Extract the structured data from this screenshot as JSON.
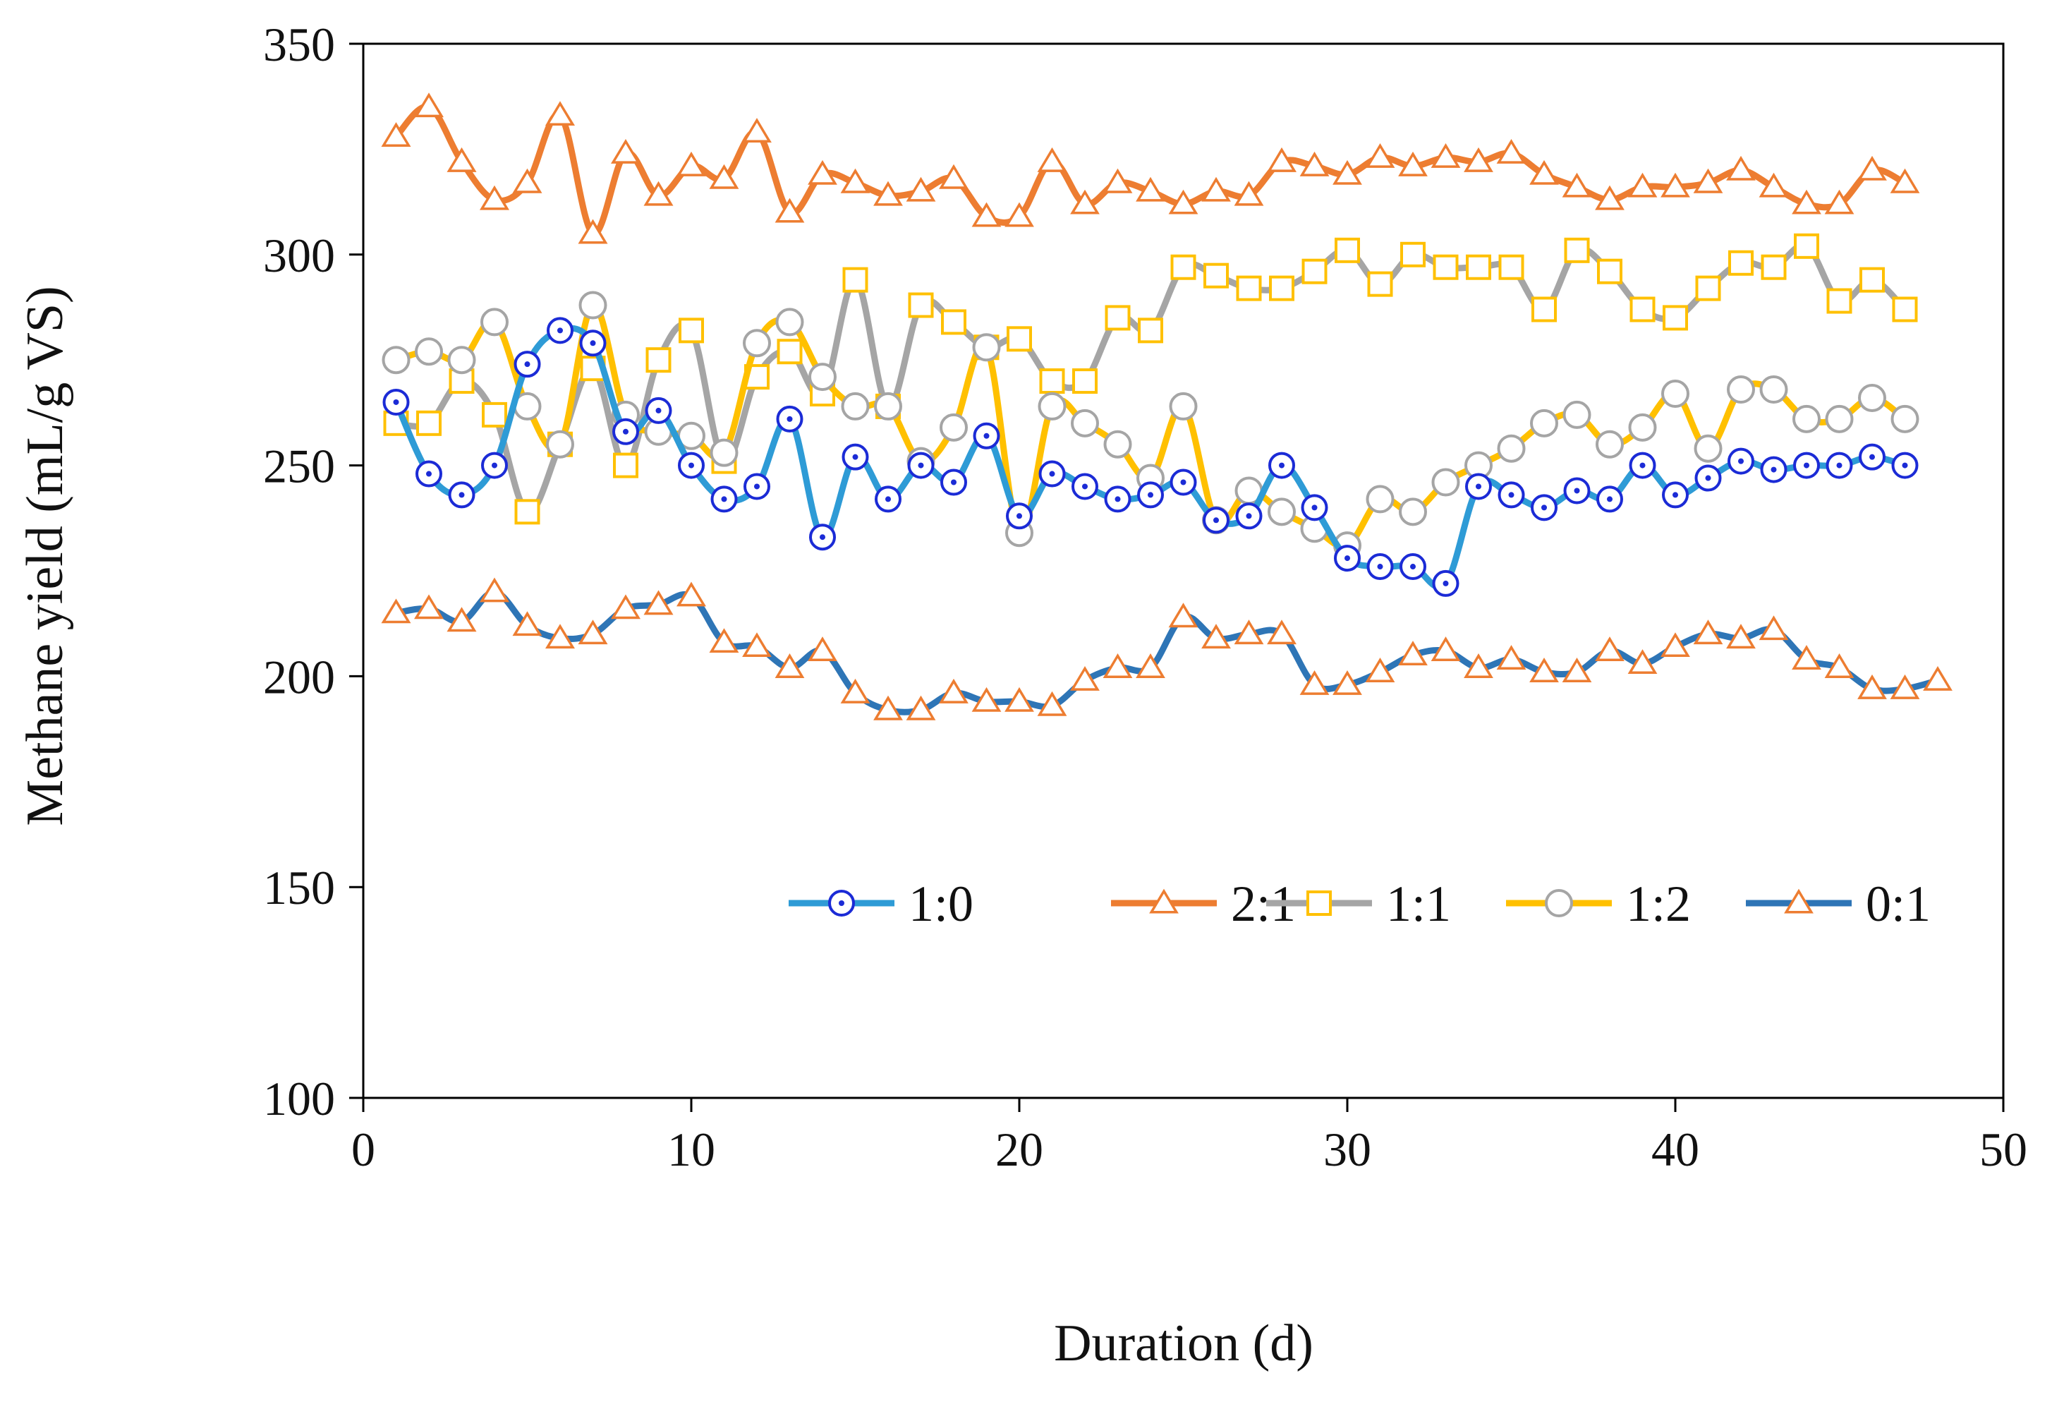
{
  "chart_data": {
    "type": "line",
    "title": "",
    "xlabel": "Duration (d)",
    "ylabel": "Methane yield (mL/g VS)",
    "xlim": [
      0,
      50
    ],
    "ylim": [
      100,
      350
    ],
    "xticks": [
      0,
      10,
      20,
      30,
      40,
      50
    ],
    "yticks": [
      100,
      150,
      200,
      250,
      300,
      350
    ],
    "grid": false,
    "legend_position": "bottom-right, single row",
    "series": [
      {
        "name": "1:0",
        "line_color": "#2E9BD6",
        "marker": "circle-dot",
        "marker_color": "#1B2BD6",
        "x": [
          1,
          2,
          3,
          4,
          5,
          6,
          7,
          8,
          9,
          10,
          11,
          12,
          13,
          14,
          15,
          16,
          17,
          18,
          19,
          20,
          21,
          22,
          23,
          24,
          25,
          26,
          27,
          28,
          29,
          30,
          31,
          32,
          33,
          34,
          35,
          36,
          37,
          38,
          39,
          40,
          41,
          42,
          43,
          44,
          45,
          46,
          47
        ],
        "values": [
          265,
          248,
          243,
          250,
          274,
          282,
          279,
          258,
          263,
          250,
          242,
          245,
          261,
          233,
          252,
          242,
          250,
          246,
          257,
          238,
          248,
          245,
          242,
          243,
          246,
          237,
          238,
          250,
          240,
          228,
          226,
          226,
          222,
          245,
          243,
          240,
          244,
          242,
          250,
          243,
          247,
          251,
          249,
          250,
          250,
          252,
          250
        ]
      },
      {
        "name": "2:1",
        "line_color": "#ED7D31",
        "marker": "triangle",
        "marker_color": "#ED7D31",
        "x": [
          1,
          2,
          3,
          4,
          5,
          6,
          7,
          8,
          9,
          10,
          11,
          12,
          13,
          14,
          15,
          16,
          17,
          18,
          19,
          20,
          21,
          22,
          23,
          24,
          25,
          26,
          27,
          28,
          29,
          30,
          31,
          32,
          33,
          34,
          35,
          36,
          37,
          38,
          39,
          40,
          41,
          42,
          43,
          44,
          45,
          46,
          47
        ],
        "values": [
          328,
          335,
          322,
          313,
          317,
          333,
          305,
          324,
          314,
          321,
          318,
          329,
          310,
          319,
          317,
          314,
          315,
          318,
          309,
          309,
          322,
          312,
          317,
          315,
          312,
          315,
          314,
          322,
          321,
          319,
          323,
          321,
          323,
          322,
          324,
          319,
          316,
          313,
          316,
          316,
          317,
          320,
          316,
          312,
          312,
          320,
          317
        ]
      },
      {
        "name": "1:1",
        "line_color": "#A5A5A5",
        "marker": "square",
        "marker_color": "#FFC000",
        "x": [
          1,
          2,
          3,
          4,
          5,
          6,
          7,
          8,
          9,
          10,
          11,
          12,
          13,
          14,
          15,
          16,
          17,
          18,
          19,
          20,
          21,
          22,
          23,
          24,
          25,
          26,
          27,
          28,
          29,
          30,
          31,
          32,
          33,
          34,
          35,
          36,
          37,
          38,
          39,
          40,
          41,
          42,
          43,
          44,
          45,
          46,
          47
        ],
        "values": [
          260,
          260,
          270,
          262,
          239,
          255,
          273,
          250,
          275,
          282,
          251,
          271,
          277,
          267,
          294,
          264,
          288,
          284,
          278,
          280,
          270,
          270,
          285,
          282,
          297,
          295,
          292,
          292,
          296,
          301,
          293,
          300,
          297,
          297,
          297,
          287,
          301,
          296,
          287,
          285,
          292,
          298,
          297,
          302,
          289,
          294,
          287
        ]
      },
      {
        "name": "1:2",
        "line_color": "#FFC000",
        "marker": "circle",
        "marker_color": "#A5A5A5",
        "x": [
          1,
          2,
          3,
          4,
          5,
          6,
          7,
          8,
          9,
          10,
          11,
          12,
          13,
          14,
          15,
          16,
          17,
          18,
          19,
          20,
          21,
          22,
          23,
          24,
          25,
          26,
          27,
          28,
          29,
          30,
          31,
          32,
          33,
          34,
          35,
          36,
          37,
          38,
          39,
          40,
          41,
          42,
          43,
          44,
          45,
          46,
          47
        ],
        "values": [
          275,
          277,
          275,
          284,
          264,
          255,
          288,
          262,
          258,
          257,
          253,
          279,
          284,
          271,
          264,
          264,
          251,
          259,
          278,
          234,
          264,
          260,
          255,
          247,
          264,
          237,
          244,
          239,
          235,
          231,
          242,
          239,
          246,
          250,
          254,
          260,
          262,
          255,
          259,
          267,
          254,
          268,
          268,
          261,
          261,
          266,
          261
        ]
      },
      {
        "name": "0:1",
        "line_color": "#2E75B6",
        "marker": "triangle",
        "marker_color": "#ED7D31",
        "x": [
          1,
          2,
          3,
          4,
          5,
          6,
          7,
          8,
          9,
          10,
          11,
          12,
          13,
          14,
          15,
          16,
          17,
          18,
          19,
          20,
          21,
          22,
          23,
          24,
          25,
          26,
          27,
          28,
          29,
          30,
          31,
          32,
          33,
          34,
          35,
          36,
          37,
          38,
          39,
          40,
          41,
          42,
          43,
          44,
          45,
          46,
          47,
          48
        ],
        "values": [
          215,
          216,
          213,
          220,
          212,
          209,
          210,
          216,
          217,
          219,
          208,
          207,
          202,
          206,
          196,
          192,
          192,
          196,
          194,
          194,
          193,
          199,
          202,
          202,
          214,
          209,
          210,
          210,
          198,
          198,
          201,
          205,
          206,
          202,
          204,
          201,
          201,
          206,
          203,
          207,
          210,
          209,
          211,
          204,
          202,
          197,
          197,
          199
        ]
      }
    ]
  }
}
